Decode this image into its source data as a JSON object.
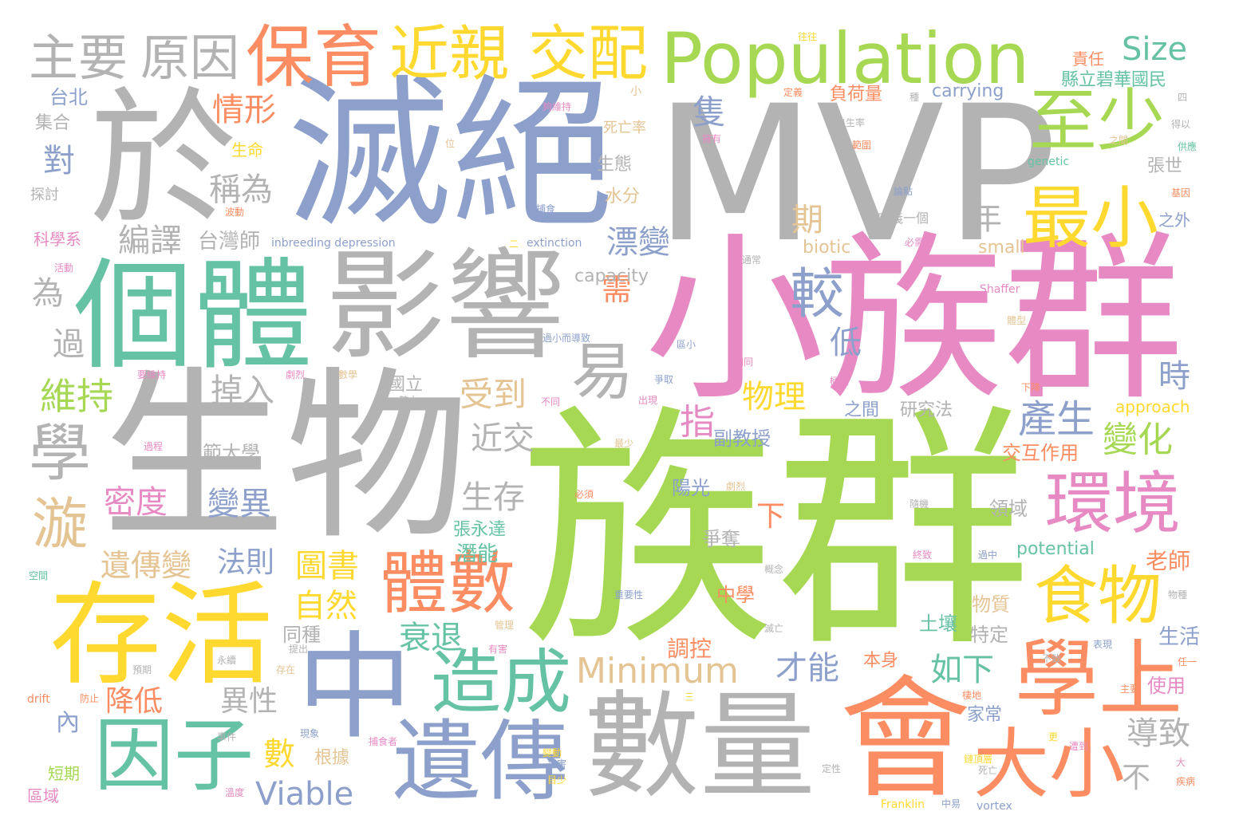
{
  "palette": {
    "c1": "#b3b3b3",
    "c2": "#8da0cb",
    "c3": "#e78ac3",
    "c4": "#a6d854",
    "c5": "#fc8d62",
    "c6": "#ffd92f",
    "c7": "#66c2a5",
    "c8": "#e5c494"
  },
  "words": [
    "MVP",
    "族群",
    "小族群",
    "生物",
    "於",
    "滅絕",
    "個體",
    "影響",
    "數量",
    "會",
    "中",
    "存活",
    "學上",
    "遺傳",
    "造成",
    "因子",
    "大小",
    "環境",
    "食物",
    "體數",
    "最小",
    "至少",
    "Population",
    "保育",
    "近親",
    "交配",
    "主要",
    "原因",
    "學",
    "漩",
    "易",
    "較",
    "Minimum",
    "Viable",
    "Size",
    "情形",
    "稱為",
    "編譯",
    "台灣師",
    "維持",
    "掉入",
    "受到",
    "物理",
    "產生",
    "變化",
    "指",
    "近交",
    "生存",
    "密度",
    "變異",
    "遺傳變",
    "法則",
    "圖書",
    "自然",
    "衰退",
    "降低",
    "異性",
    "如下",
    "導致",
    "數",
    "才能",
    "調控",
    "下",
    "低",
    "過",
    "為",
    "隻",
    "漂變",
    "需",
    "期",
    "年",
    "時",
    "對",
    "內",
    "不",
    "潛能",
    "交互作用",
    "副教授",
    "範大學",
    "同種",
    "土壤",
    "中學",
    "陽光",
    "爭奪",
    "特定",
    "物質",
    "生活",
    "老師",
    "領域",
    "研究法",
    "之間",
    "本身",
    "家常",
    "使用",
    "台北",
    "集合",
    "探討",
    "科學系",
    "生命",
    "生態",
    "水分",
    "死亡率",
    "carrying",
    "capacity",
    "biotic",
    "potential",
    "small",
    "approach",
    "extinction",
    "inbreeding depression",
    "genetic",
    "Shaffer",
    "drift",
    "vortex",
    "Franklin",
    "負荷量",
    "張世",
    "縣立碧華國民",
    "責任",
    "張永達",
    "國立",
    "往往",
    "夠維持",
    "定義",
    "小",
    "死亡",
    "出生率",
    "擁有",
    "範圍",
    "得以",
    "供應",
    "基因",
    "論點",
    "之外",
    "必需",
    "出現",
    "不同",
    "較大",
    "劇烈",
    "數學",
    "相同",
    "過小而導致",
    "區小",
    "極大",
    "下降",
    "通常",
    "爭取",
    "體型",
    "二",
    "位",
    "三",
    "四",
    "種",
    "捕食",
    "捕食者",
    "事件",
    "變動",
    "預期",
    "永續",
    "存在",
    "提出",
    "有害",
    "管理",
    "必須",
    "最少",
    "過程",
    "要維持",
    "劇烈",
    "重要性",
    "隨機",
    "概念",
    "滅亡",
    "終致",
    "過中",
    "物種",
    "表現",
    "任一",
    "主要",
    "棲地",
    "鏈頂層",
    "遭到",
    "更",
    "大",
    "疾病",
    "災害",
    "目少",
    "定性",
    "中易",
    "短期",
    "區域",
    "空間",
    "防止",
    "現象",
    "根據",
    "溫度",
    "活動",
    "波動",
    "定義一個",
    "不致",
    "之間",
    "接觸"
  ]
}
